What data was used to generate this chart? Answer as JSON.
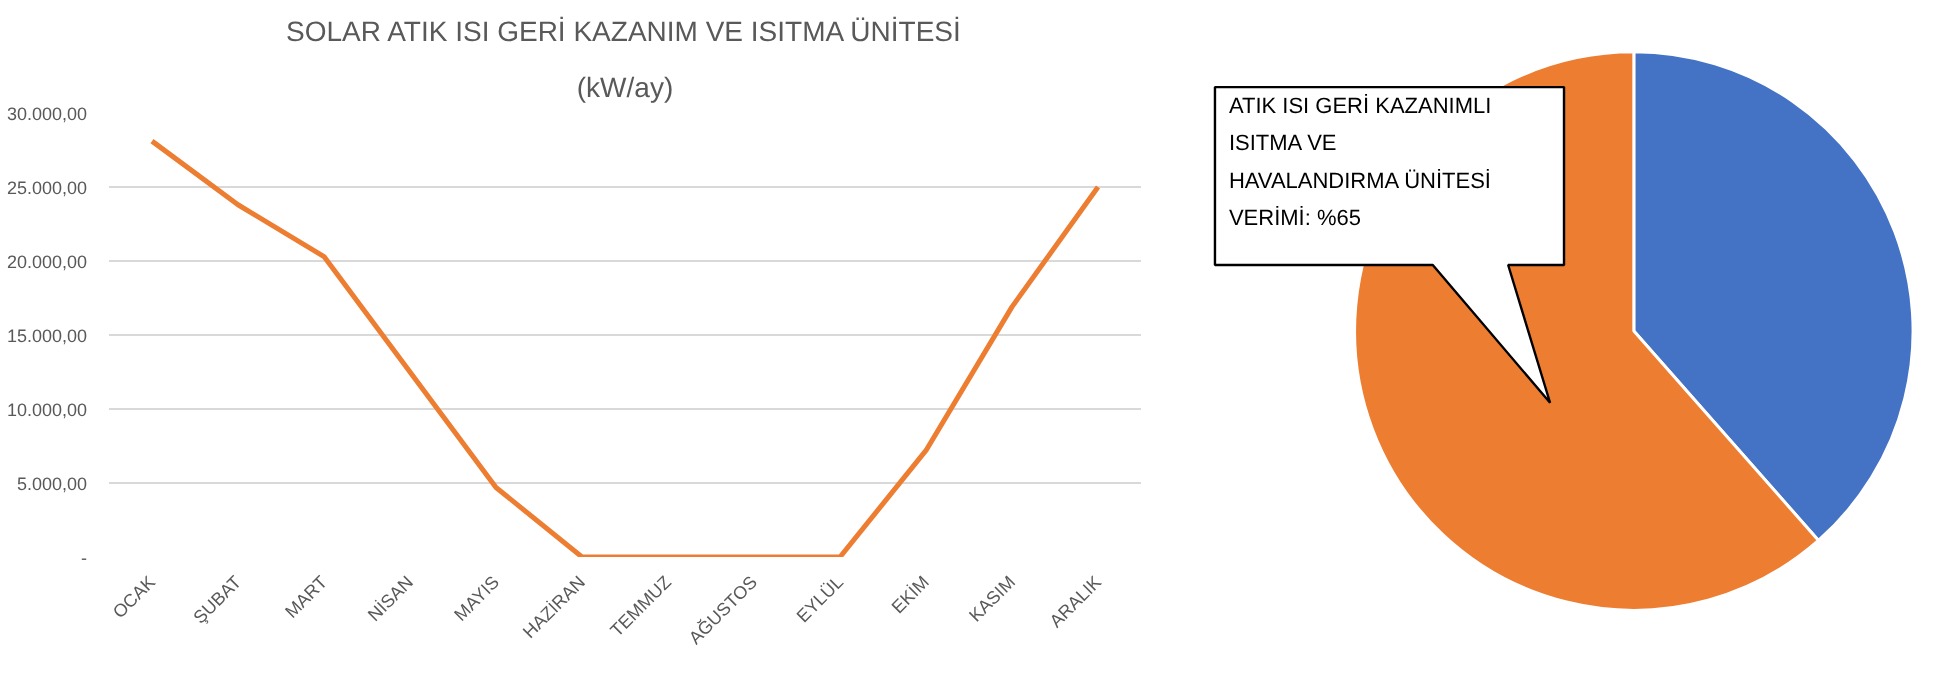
{
  "chart_data": [
    {
      "type": "line",
      "title": "SOLAR ATIK ISI GERİ KAZANIM VE ISITMA ÜNİTESİ",
      "subtitle": "(kW/ay)",
      "categories": [
        "OCAK",
        "ŞUBAT",
        "MART",
        "NİSAN",
        "MAYIS",
        "HAZİRAN",
        "TEMMUZ",
        "AĞUSTOS",
        "EYLÜL",
        "EKİM",
        "KASIM",
        "ARALIK"
      ],
      "series": [
        {
          "color": "#ed7d31",
          "values": [
            28100,
            23800,
            20300,
            12500,
            4700,
            0,
            0,
            0,
            0,
            7200,
            16900,
            25000
          ]
        }
      ],
      "ylim": [
        0,
        30000
      ],
      "yticks": [
        {
          "value": 0,
          "label": "-"
        },
        {
          "value": 5000,
          "label": "5.000,00"
        },
        {
          "value": 10000,
          "label": "10.000,00"
        },
        {
          "value": 15000,
          "label": "15.000,00"
        },
        {
          "value": 20000,
          "label": "20.000,00"
        },
        {
          "value": 25000,
          "label": "25.000,00"
        },
        {
          "value": 30000,
          "label": "30.000,00"
        }
      ],
      "grid": "y",
      "marker": "none",
      "line_style": "solid"
    },
    {
      "type": "pie",
      "categories": [
        null,
        null
      ],
      "values": [
        38.5,
        61.5
      ],
      "colors": [
        "#4472c4",
        "#ed7d31"
      ],
      "annotations": [
        "ATIK ISI GERİ KAZANIMLI\nISITMA VE\nHAVALANDIRMA ÜNİTESİ\nVERİMİ: %65"
      ]
    }
  ]
}
